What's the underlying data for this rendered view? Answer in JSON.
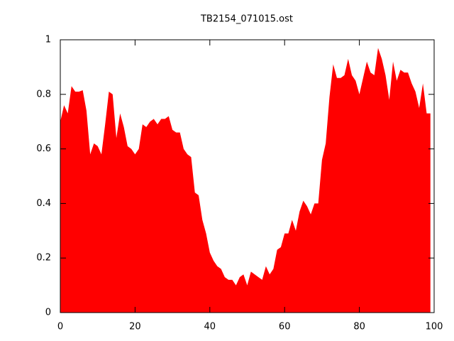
{
  "chart_data": {
    "type": "area",
    "title": "TB2154_071015.ost",
    "x": [
      0,
      1,
      2,
      3,
      4,
      5,
      6,
      7,
      8,
      9,
      10,
      11,
      12,
      13,
      14,
      15,
      16,
      17,
      18,
      19,
      20,
      21,
      22,
      23,
      24,
      25,
      26,
      27,
      28,
      29,
      30,
      31,
      32,
      33,
      34,
      35,
      36,
      37,
      38,
      39,
      40,
      41,
      42,
      43,
      44,
      45,
      46,
      47,
      48,
      49,
      50,
      51,
      52,
      53,
      54,
      55,
      56,
      57,
      58,
      59,
      60,
      61,
      62,
      63,
      64,
      65,
      66,
      67,
      68,
      69,
      70,
      71,
      72,
      73,
      74,
      75,
      76,
      77,
      78,
      79,
      80,
      81,
      82,
      83,
      84,
      85,
      86,
      87,
      88,
      89,
      90,
      91,
      92,
      93,
      94,
      95,
      96,
      97,
      98,
      99
    ],
    "series": [
      {
        "color": "#ff0000",
        "values": [
          0.7,
          0.76,
          0.73,
          0.83,
          0.81,
          0.81,
          0.815,
          0.74,
          0.58,
          0.62,
          0.61,
          0.58,
          0.69,
          0.81,
          0.8,
          0.64,
          0.73,
          0.68,
          0.61,
          0.6,
          0.58,
          0.6,
          0.69,
          0.68,
          0.7,
          0.71,
          0.69,
          0.71,
          0.71,
          0.72,
          0.67,
          0.66,
          0.66,
          0.6,
          0.58,
          0.57,
          0.44,
          0.43,
          0.34,
          0.29,
          0.22,
          0.19,
          0.17,
          0.16,
          0.13,
          0.12,
          0.12,
          0.1,
          0.13,
          0.14,
          0.1,
          0.15,
          0.14,
          0.13,
          0.12,
          0.17,
          0.14,
          0.16,
          0.23,
          0.24,
          0.29,
          0.29,
          0.34,
          0.3,
          0.37,
          0.41,
          0.39,
          0.36,
          0.4,
          0.4,
          0.56,
          0.62,
          0.79,
          0.91,
          0.86,
          0.86,
          0.87,
          0.93,
          0.87,
          0.85,
          0.8,
          0.86,
          0.92,
          0.88,
          0.87,
          0.97,
          0.93,
          0.87,
          0.78,
          0.92,
          0.85,
          0.89,
          0.88,
          0.88,
          0.84,
          0.81,
          0.75,
          0.84,
          0.73,
          0.73
        ]
      }
    ],
    "xlim": [
      0,
      100
    ],
    "ylim": [
      0,
      1
    ],
    "xticks": [
      0,
      20,
      40,
      60,
      80,
      100
    ],
    "yticks": [
      0,
      0.2,
      0.4,
      0.6,
      0.8,
      1
    ],
    "grid": false
  }
}
